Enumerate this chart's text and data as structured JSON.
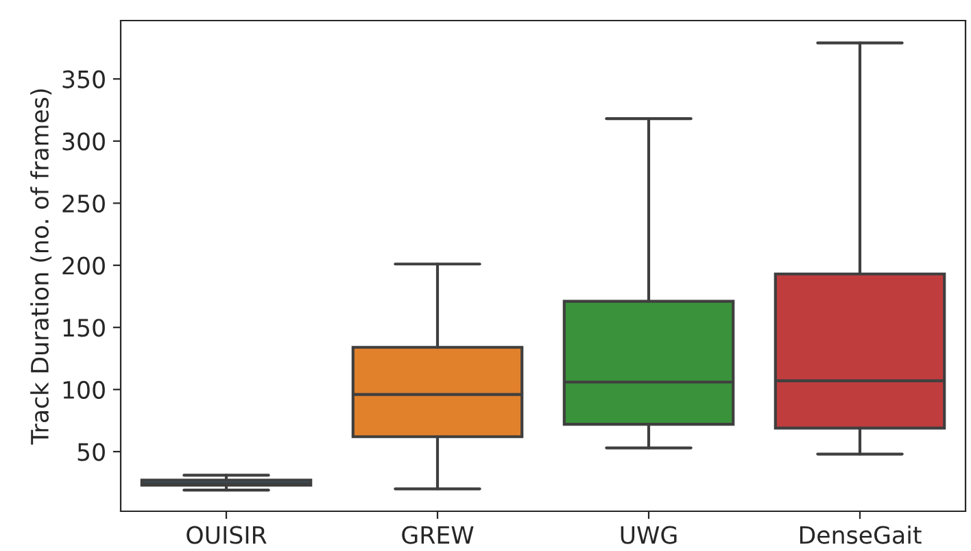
{
  "chart_data": {
    "type": "box",
    "ylabel": "Track Duration (no. of frames)",
    "categories": [
      "OUISIR",
      "GREW",
      "UWG",
      "DenseGait"
    ],
    "colors": [
      "#3274a1",
      "#e1812c",
      "#3a923a",
      "#c03d3e"
    ],
    "boxes": [
      {
        "low": 19,
        "q1": 23,
        "median": 24.5,
        "q3": 27,
        "high": 31
      },
      {
        "low": 20,
        "q1": 62,
        "median": 96,
        "q3": 134,
        "high": 201
      },
      {
        "low": 53,
        "q1": 72,
        "median": 106,
        "q3": 171,
        "high": 318
      },
      {
        "low": 48,
        "q1": 69,
        "median": 107,
        "q3": 193,
        "high": 379
      }
    ],
    "ylim": [
      2,
      397
    ],
    "yticks": [
      50,
      100,
      150,
      200,
      250,
      300,
      350
    ],
    "grid": false
  }
}
